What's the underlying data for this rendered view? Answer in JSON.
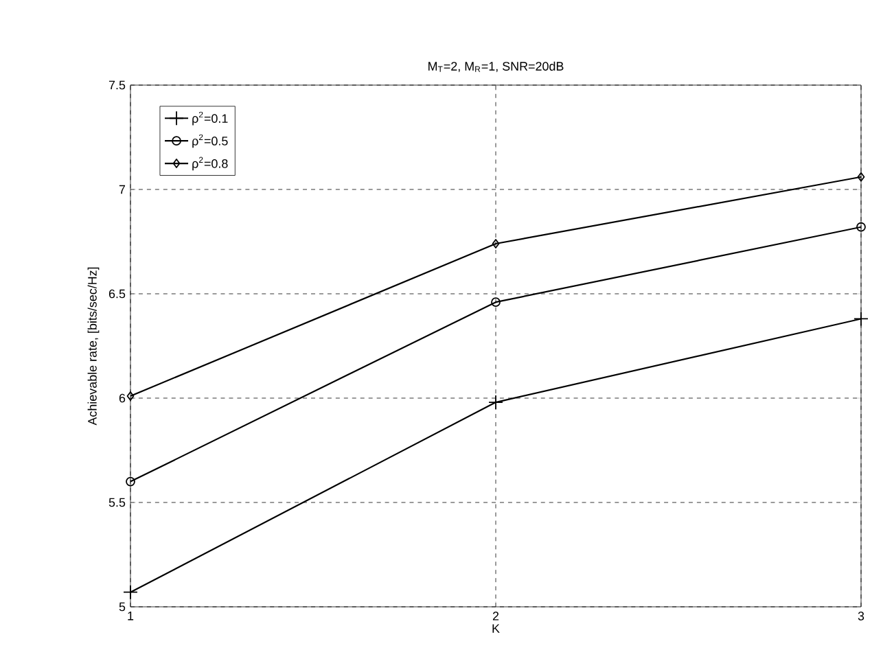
{
  "chart_data": {
    "type": "line",
    "title": "M$_{T}$=2, M$_{R}$=1, SNR=20dB",
    "xlabel": "K",
    "ylabel": "Achievable rate, [bits/sec/Hz]",
    "x": [
      1,
      2,
      3
    ],
    "series": [
      {
        "name": "ρ$^{2}$=0.1",
        "color": "#000000",
        "marker": "cross",
        "values": [
          5.07,
          5.98,
          6.38
        ]
      },
      {
        "name": "ρ$^{2}$=0.5",
        "color": "#000000",
        "marker": "circle",
        "values": [
          5.6,
          6.46,
          6.82
        ]
      },
      {
        "name": "ρ$^{2}$=0.8",
        "color": "#000000",
        "marker": "diamond",
        "values": [
          6.01,
          6.74,
          7.06
        ]
      }
    ],
    "xlim": [
      1,
      3
    ],
    "xticks": [
      1,
      2,
      3
    ],
    "ylim": [
      5,
      7.5
    ],
    "yticks": [
      5,
      5.5,
      6,
      6.5,
      7,
      7.5
    ],
    "grid": true,
    "legend": "top left",
    "line_style": "solid"
  }
}
